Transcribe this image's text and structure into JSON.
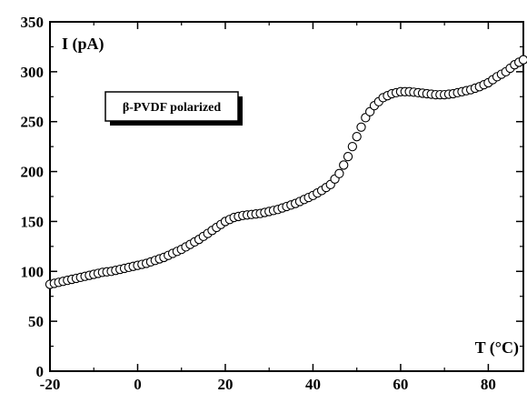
{
  "chart_data": {
    "type": "scatter",
    "ylabel": "I (pA)",
    "xlabel": "T (°C)",
    "xlim": [
      -20,
      88
    ],
    "ylim": [
      0,
      350
    ],
    "xticks": [
      -20,
      0,
      20,
      40,
      60,
      80
    ],
    "yticks": [
      0,
      50,
      100,
      150,
      200,
      250,
      300,
      350
    ],
    "grid": false,
    "legend_position": "top-left",
    "marker": "open-circle",
    "series": [
      {
        "name": "β-PVDF polarized",
        "x": [
          -20,
          -18,
          -16,
          -14,
          -12,
          -10,
          -8,
          -6,
          -4,
          -2,
          0,
          2,
          4,
          6,
          8,
          10,
          12,
          14,
          16,
          18,
          20,
          22,
          24,
          26,
          28,
          30,
          32,
          34,
          36,
          38,
          40,
          42,
          44,
          46,
          48,
          50,
          52,
          54,
          56,
          58,
          60,
          62,
          64,
          66,
          68,
          70,
          72,
          74,
          76,
          78,
          80,
          82,
          84,
          86,
          88
        ],
        "y": [
          87,
          89,
          91,
          93,
          95,
          97,
          99,
          100,
          102,
          104,
          106,
          108,
          111,
          114,
          118,
          122,
          127,
          132,
          138,
          144,
          150,
          154,
          156,
          157,
          158,
          160,
          162,
          165,
          168,
          172,
          176,
          181,
          187,
          198,
          215,
          235,
          254,
          266,
          274,
          278,
          280,
          280,
          279,
          278,
          277,
          277,
          278,
          280,
          282,
          285,
          289,
          295,
          300,
          307,
          312
        ]
      }
    ]
  }
}
